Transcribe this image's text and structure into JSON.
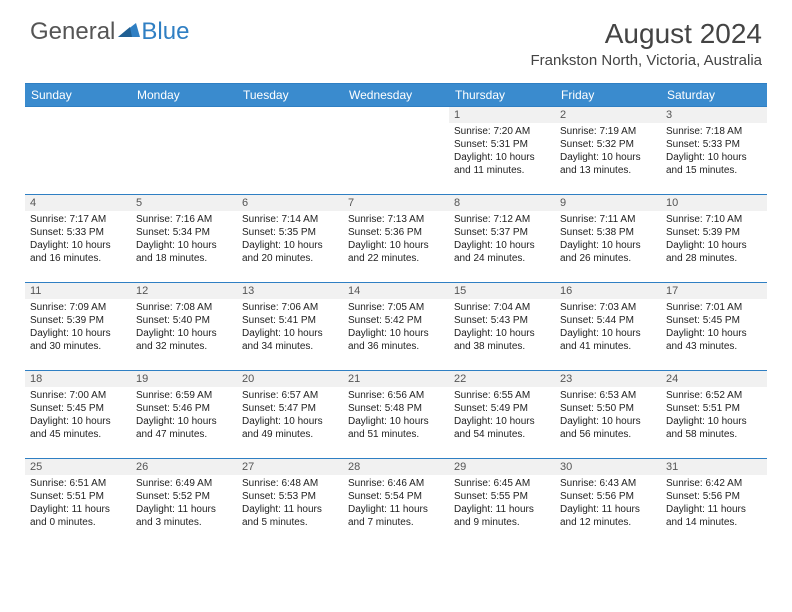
{
  "logo": {
    "text_gray": "General",
    "text_blue": "Blue"
  },
  "title": "August 2024",
  "location": "Frankston North, Victoria, Australia",
  "colors": {
    "header_bg": "#3a8bce",
    "header_text": "#ffffff",
    "border": "#2f7fc3",
    "daynum_bg": "#f1f1f1",
    "body_text": "#222222",
    "title_text": "#444444"
  },
  "day_headers": [
    "Sunday",
    "Monday",
    "Tuesday",
    "Wednesday",
    "Thursday",
    "Friday",
    "Saturday"
  ],
  "weeks": [
    [
      {
        "n": "",
        "sr": "",
        "ss": "",
        "dl": ""
      },
      {
        "n": "",
        "sr": "",
        "ss": "",
        "dl": ""
      },
      {
        "n": "",
        "sr": "",
        "ss": "",
        "dl": ""
      },
      {
        "n": "",
        "sr": "",
        "ss": "",
        "dl": ""
      },
      {
        "n": "1",
        "sr": "Sunrise: 7:20 AM",
        "ss": "Sunset: 5:31 PM",
        "dl": "Daylight: 10 hours and 11 minutes."
      },
      {
        "n": "2",
        "sr": "Sunrise: 7:19 AM",
        "ss": "Sunset: 5:32 PM",
        "dl": "Daylight: 10 hours and 13 minutes."
      },
      {
        "n": "3",
        "sr": "Sunrise: 7:18 AM",
        "ss": "Sunset: 5:33 PM",
        "dl": "Daylight: 10 hours and 15 minutes."
      }
    ],
    [
      {
        "n": "4",
        "sr": "Sunrise: 7:17 AM",
        "ss": "Sunset: 5:33 PM",
        "dl": "Daylight: 10 hours and 16 minutes."
      },
      {
        "n": "5",
        "sr": "Sunrise: 7:16 AM",
        "ss": "Sunset: 5:34 PM",
        "dl": "Daylight: 10 hours and 18 minutes."
      },
      {
        "n": "6",
        "sr": "Sunrise: 7:14 AM",
        "ss": "Sunset: 5:35 PM",
        "dl": "Daylight: 10 hours and 20 minutes."
      },
      {
        "n": "7",
        "sr": "Sunrise: 7:13 AM",
        "ss": "Sunset: 5:36 PM",
        "dl": "Daylight: 10 hours and 22 minutes."
      },
      {
        "n": "8",
        "sr": "Sunrise: 7:12 AM",
        "ss": "Sunset: 5:37 PM",
        "dl": "Daylight: 10 hours and 24 minutes."
      },
      {
        "n": "9",
        "sr": "Sunrise: 7:11 AM",
        "ss": "Sunset: 5:38 PM",
        "dl": "Daylight: 10 hours and 26 minutes."
      },
      {
        "n": "10",
        "sr": "Sunrise: 7:10 AM",
        "ss": "Sunset: 5:39 PM",
        "dl": "Daylight: 10 hours and 28 minutes."
      }
    ],
    [
      {
        "n": "11",
        "sr": "Sunrise: 7:09 AM",
        "ss": "Sunset: 5:39 PM",
        "dl": "Daylight: 10 hours and 30 minutes."
      },
      {
        "n": "12",
        "sr": "Sunrise: 7:08 AM",
        "ss": "Sunset: 5:40 PM",
        "dl": "Daylight: 10 hours and 32 minutes."
      },
      {
        "n": "13",
        "sr": "Sunrise: 7:06 AM",
        "ss": "Sunset: 5:41 PM",
        "dl": "Daylight: 10 hours and 34 minutes."
      },
      {
        "n": "14",
        "sr": "Sunrise: 7:05 AM",
        "ss": "Sunset: 5:42 PM",
        "dl": "Daylight: 10 hours and 36 minutes."
      },
      {
        "n": "15",
        "sr": "Sunrise: 7:04 AM",
        "ss": "Sunset: 5:43 PM",
        "dl": "Daylight: 10 hours and 38 minutes."
      },
      {
        "n": "16",
        "sr": "Sunrise: 7:03 AM",
        "ss": "Sunset: 5:44 PM",
        "dl": "Daylight: 10 hours and 41 minutes."
      },
      {
        "n": "17",
        "sr": "Sunrise: 7:01 AM",
        "ss": "Sunset: 5:45 PM",
        "dl": "Daylight: 10 hours and 43 minutes."
      }
    ],
    [
      {
        "n": "18",
        "sr": "Sunrise: 7:00 AM",
        "ss": "Sunset: 5:45 PM",
        "dl": "Daylight: 10 hours and 45 minutes."
      },
      {
        "n": "19",
        "sr": "Sunrise: 6:59 AM",
        "ss": "Sunset: 5:46 PM",
        "dl": "Daylight: 10 hours and 47 minutes."
      },
      {
        "n": "20",
        "sr": "Sunrise: 6:57 AM",
        "ss": "Sunset: 5:47 PM",
        "dl": "Daylight: 10 hours and 49 minutes."
      },
      {
        "n": "21",
        "sr": "Sunrise: 6:56 AM",
        "ss": "Sunset: 5:48 PM",
        "dl": "Daylight: 10 hours and 51 minutes."
      },
      {
        "n": "22",
        "sr": "Sunrise: 6:55 AM",
        "ss": "Sunset: 5:49 PM",
        "dl": "Daylight: 10 hours and 54 minutes."
      },
      {
        "n": "23",
        "sr": "Sunrise: 6:53 AM",
        "ss": "Sunset: 5:50 PM",
        "dl": "Daylight: 10 hours and 56 minutes."
      },
      {
        "n": "24",
        "sr": "Sunrise: 6:52 AM",
        "ss": "Sunset: 5:51 PM",
        "dl": "Daylight: 10 hours and 58 minutes."
      }
    ],
    [
      {
        "n": "25",
        "sr": "Sunrise: 6:51 AM",
        "ss": "Sunset: 5:51 PM",
        "dl": "Daylight: 11 hours and 0 minutes."
      },
      {
        "n": "26",
        "sr": "Sunrise: 6:49 AM",
        "ss": "Sunset: 5:52 PM",
        "dl": "Daylight: 11 hours and 3 minutes."
      },
      {
        "n": "27",
        "sr": "Sunrise: 6:48 AM",
        "ss": "Sunset: 5:53 PM",
        "dl": "Daylight: 11 hours and 5 minutes."
      },
      {
        "n": "28",
        "sr": "Sunrise: 6:46 AM",
        "ss": "Sunset: 5:54 PM",
        "dl": "Daylight: 11 hours and 7 minutes."
      },
      {
        "n": "29",
        "sr": "Sunrise: 6:45 AM",
        "ss": "Sunset: 5:55 PM",
        "dl": "Daylight: 11 hours and 9 minutes."
      },
      {
        "n": "30",
        "sr": "Sunrise: 6:43 AM",
        "ss": "Sunset: 5:56 PM",
        "dl": "Daylight: 11 hours and 12 minutes."
      },
      {
        "n": "31",
        "sr": "Sunrise: 6:42 AM",
        "ss": "Sunset: 5:56 PM",
        "dl": "Daylight: 11 hours and 14 minutes."
      }
    ]
  ]
}
